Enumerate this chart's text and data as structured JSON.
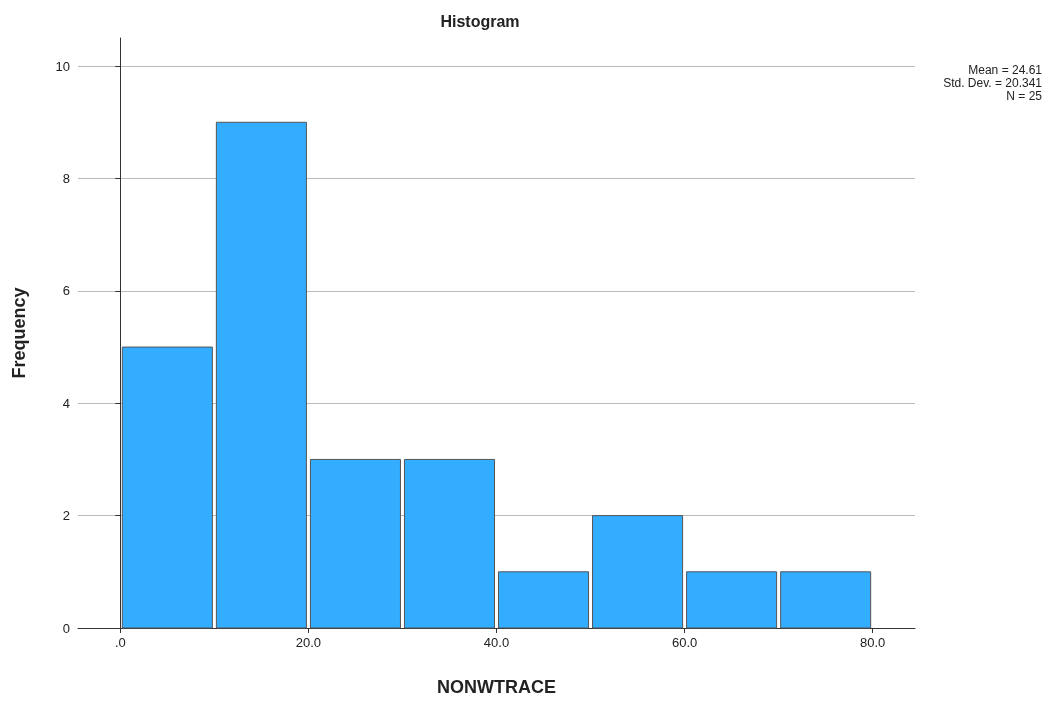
{
  "chart_data": {
    "type": "histogram",
    "title": "Histogram",
    "xlabel": "NONWTRACE",
    "ylabel": "Frequency",
    "bins": [
      0,
      10,
      20,
      30,
      40,
      50,
      60,
      70,
      80
    ],
    "values": [
      5,
      9,
      3,
      3,
      1,
      2,
      1,
      1
    ],
    "color": "#33adff",
    "xlim": [
      -4.5,
      84.5
    ],
    "xticks": [
      {
        "value": 0,
        "label": ".0"
      },
      {
        "value": 20,
        "label": "20.0"
      },
      {
        "value": 40,
        "label": "40.0"
      },
      {
        "value": 60,
        "label": "60.0"
      },
      {
        "value": 80,
        "label": "80.0"
      }
    ],
    "ylim": [
      0,
      10.5
    ],
    "yticks": [
      0,
      2,
      4,
      6,
      8,
      10
    ],
    "grid": "y",
    "annotations": [
      "Mean = 24.61",
      "Std. Dev. = 20.341",
      "N = 25"
    ]
  }
}
